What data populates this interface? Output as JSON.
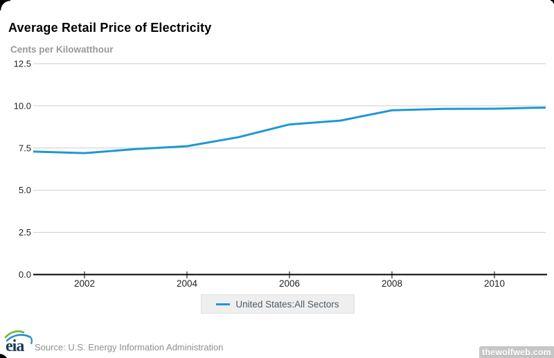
{
  "header": {
    "title": "Average Retail Price of Electricity",
    "subtitle": "Cents per Kilowatthour"
  },
  "chart_data": {
    "type": "line",
    "title": "Average Retail Price of Electricity",
    "ylabel": "Cents per Kilowatthour",
    "xlabel": "",
    "x": [
      2001,
      2002,
      2003,
      2004,
      2005,
      2006,
      2007,
      2008,
      2009,
      2010,
      2011
    ],
    "series": [
      {
        "name": "United States:All Sectors",
        "color": "#1f97d4",
        "values": [
          7.29,
          7.2,
          7.44,
          7.61,
          8.14,
          8.9,
          9.13,
          9.74,
          9.82,
          9.83,
          9.9
        ]
      }
    ],
    "xlim": [
      2001,
      2011
    ],
    "ylim": [
      0,
      12.5
    ],
    "x_tick_values": [
      2002,
      2004,
      2006,
      2008,
      2010
    ],
    "x_tick_labels": [
      "2002",
      "2004",
      "2006",
      "2008",
      "2010"
    ],
    "y_tick_values": [
      0,
      2.5,
      5,
      7.5,
      10,
      12.5
    ],
    "y_tick_labels": [
      "0.0",
      "2.5",
      "5.0",
      "7.5",
      "10.0",
      "12.5"
    ],
    "grid": "horizontal",
    "legend_position": "bottom-center"
  },
  "legend": {
    "label": "United States:All Sectors"
  },
  "footer": {
    "logo_text": "eia",
    "source": "Source: U.S. Energy Information Administration"
  },
  "watermark": {
    "text": "thewolfweb.com"
  },
  "colors": {
    "line": "#1f97d4",
    "grid": "#cccccc",
    "axis": "#000000",
    "title": "#000000",
    "subtitle": "#999999",
    "tick_label": "#222222",
    "legend_bg": "#efefef",
    "legend_border": "#e0e0e0",
    "legend_text": "#4e5a64",
    "source_text": "#8f8f8f",
    "watermark_bg": "#c6c6c6",
    "watermark_text": "#ffffff",
    "logo_navy": "#1b3a54",
    "logo_green": "#6ab82e",
    "logo_blue": "#2090c9"
  }
}
